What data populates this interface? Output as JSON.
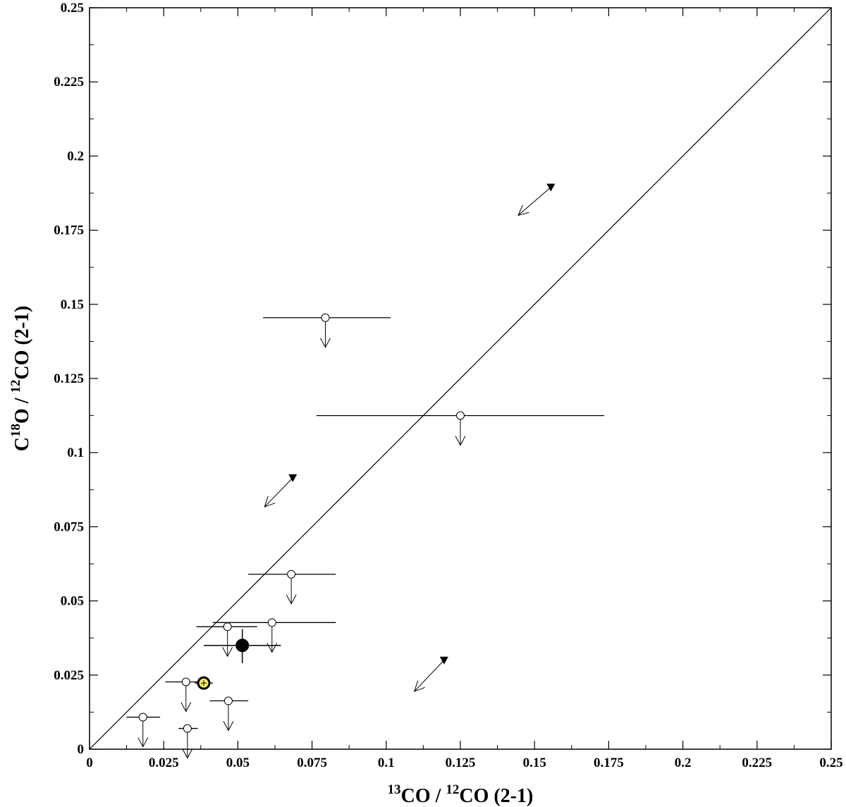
{
  "chart_data": {
    "type": "scatter",
    "title": "",
    "xlabel": {
      "sup1": "13",
      "text1": "CO / ",
      "sup2": "12",
      "text2": "CO (2-1)"
    },
    "ylabel": {
      "pre": "C",
      "sup1": "18",
      "text1": "O / ",
      "sup2": "12",
      "text2": "CO (2-1)"
    },
    "xlim": [
      0,
      0.25
    ],
    "ylim": [
      0,
      0.25
    ],
    "xticks": [
      0,
      0.025,
      0.05,
      0.075,
      0.1,
      0.125,
      0.15,
      0.175,
      0.2,
      0.225,
      0.25
    ],
    "xtick_labels": [
      "0",
      "0.025",
      "0.05",
      "0.075",
      "0.1",
      "0.125",
      "0.15",
      "0.175",
      "0.2",
      "0.225",
      "0.25"
    ],
    "yticks": [
      0,
      0.025,
      0.05,
      0.075,
      0.1,
      0.125,
      0.15,
      0.175,
      0.2,
      0.225,
      0.25
    ],
    "ytick_labels": [
      "0",
      "0.025",
      "0.05",
      "0.075",
      "0.1",
      "0.125",
      "0.15",
      "0.175",
      "0.2",
      "0.225",
      "0.25"
    ],
    "grid": false,
    "reference_line": {
      "x": [
        0,
        0.25
      ],
      "y": [
        0,
        0.25
      ]
    },
    "upper_limits": [
      {
        "x": 0.0795,
        "y": 0.1455,
        "xerr_low": 0.0585,
        "xerr_high": 0.1015
      },
      {
        "x": 0.125,
        "y": 0.1125,
        "xerr_low": 0.0765,
        "xerr_high": 0.1735
      },
      {
        "x": 0.068,
        "y": 0.059,
        "xerr_low": 0.0535,
        "xerr_high": 0.083
      },
      {
        "x": 0.0615,
        "y": 0.0427,
        "xerr_low": 0.0415,
        "xerr_high": 0.083
      },
      {
        "x": 0.0465,
        "y": 0.0413,
        "xerr_low": 0.036,
        "xerr_high": 0.0565
      },
      {
        "x": 0.0325,
        "y": 0.0227,
        "xerr_low": 0.0255,
        "xerr_high": 0.038
      },
      {
        "x": 0.0468,
        "y": 0.0163,
        "xerr_low": 0.0405,
        "xerr_high": 0.0535
      },
      {
        "x": 0.018,
        "y": 0.0108,
        "xerr_low": 0.0125,
        "xerr_high": 0.0238
      },
      {
        "x": 0.033,
        "y": 0.007,
        "xerr_low": 0.03,
        "xerr_high": 0.0365
      }
    ],
    "detections": [
      {
        "x": 0.0515,
        "y": 0.035,
        "xerr_low": 0.0385,
        "xerr_high": 0.0645,
        "yerr_low": 0.029,
        "yerr_high": 0.0405,
        "style": "filled-black"
      },
      {
        "x": 0.0385,
        "y": 0.0223,
        "xerr_low": 0.0355,
        "xerr_high": 0.0415,
        "yerr_low": 0.021,
        "yerr_high": 0.0235,
        "style": "filled-yellow"
      }
    ],
    "vectors": [
      {
        "from": [
          0.1555,
          0.1895
        ],
        "to": [
          0.1445,
          0.18
        ]
      },
      {
        "from": [
          0.0685,
          0.0915
        ],
        "to": [
          0.059,
          0.0817
        ]
      },
      {
        "from": [
          0.1195,
          0.03
        ],
        "to": [
          0.1095,
          0.0195
        ]
      }
    ],
    "colors": {
      "axis": "#000000",
      "marker_fill": "#000000",
      "highlight_fill": "#f3ea6a"
    }
  }
}
